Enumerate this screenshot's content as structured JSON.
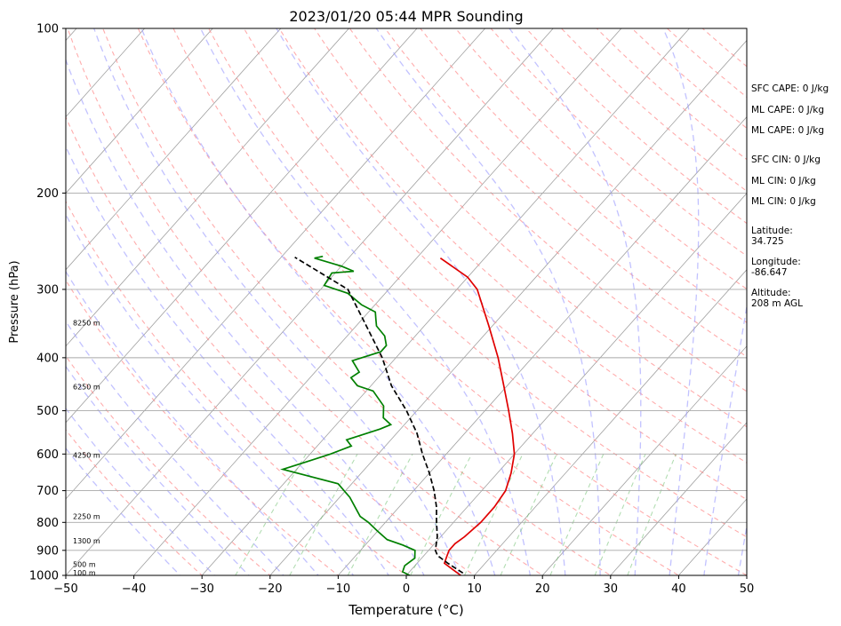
{
  "chart_data": {
    "type": "line",
    "title": "2023/01/20 05:44 MPR Sounding",
    "xlabel": "Temperature (°C)",
    "ylabel": "Pressure (hPa)",
    "xlim": [
      -50,
      50
    ],
    "ylim": [
      1000,
      100
    ],
    "yscale": "log",
    "grid": true,
    "xticks": [
      "−50",
      "−40",
      "−30",
      "−20",
      "−10",
      "0",
      "10",
      "20",
      "30",
      "40",
      "50"
    ],
    "yticks": [
      "100",
      "200",
      "300",
      "400",
      "500",
      "600",
      "700",
      "800",
      "900",
      "1000"
    ],
    "height_labels": [
      {
        "p": 988,
        "text": "100 m"
      },
      {
        "p": 955,
        "text": "500 m"
      },
      {
        "p": 865,
        "text": "1300 m"
      },
      {
        "p": 780,
        "text": "2250 m"
      },
      {
        "p": 603,
        "text": "4250 m"
      },
      {
        "p": 452,
        "text": "6250 m"
      },
      {
        "p": 345,
        "text": "8250 m"
      }
    ],
    "series": [
      {
        "color": "#e00000",
        "points": [
          [
            1000,
            8.0
          ],
          [
            975,
            6.0
          ],
          [
            950,
            4.0
          ],
          [
            925,
            3.5
          ],
          [
            900,
            3.0
          ],
          [
            875,
            3.0
          ],
          [
            850,
            3.5
          ],
          [
            800,
            4.0
          ],
          [
            750,
            4.0
          ],
          [
            700,
            3.5
          ],
          [
            650,
            2.0
          ],
          [
            600,
            0.0
          ],
          [
            550,
            -3.0
          ],
          [
            500,
            -6.5
          ],
          [
            450,
            -10.5
          ],
          [
            400,
            -15.0
          ],
          [
            350,
            -20.5
          ],
          [
            300,
            -27.0
          ],
          [
            285,
            -30.0
          ],
          [
            263,
            -36.5
          ]
        ]
      },
      {
        "color": "#008000",
        "points": [
          [
            1000,
            0.5
          ],
          [
            985,
            -1.0
          ],
          [
            960,
            -1.5
          ],
          [
            930,
            -1.0
          ],
          [
            900,
            -2.0
          ],
          [
            880,
            -4.5
          ],
          [
            860,
            -7.5
          ],
          [
            830,
            -10.0
          ],
          [
            800,
            -12.5
          ],
          [
            780,
            -14.5
          ],
          [
            720,
            -18.5
          ],
          [
            680,
            -22.0
          ],
          [
            640,
            -32.0
          ],
          [
            620,
            -29.5
          ],
          [
            600,
            -27.0
          ],
          [
            580,
            -25.0
          ],
          [
            565,
            -26.5
          ],
          [
            540,
            -23.0
          ],
          [
            530,
            -22.0
          ],
          [
            515,
            -24.0
          ],
          [
            490,
            -25.5
          ],
          [
            460,
            -29.0
          ],
          [
            450,
            -32.0
          ],
          [
            435,
            -34.0
          ],
          [
            425,
            -33.5
          ],
          [
            405,
            -36.0
          ],
          [
            390,
            -33.0
          ],
          [
            380,
            -33.0
          ],
          [
            365,
            -34.5
          ],
          [
            350,
            -37.0
          ],
          [
            340,
            -38.0
          ],
          [
            330,
            -39.0
          ],
          [
            320,
            -42.0
          ],
          [
            305,
            -45.5
          ],
          [
            295,
            -50.0
          ],
          [
            280,
            -50.5
          ],
          [
            278,
            -47.5
          ],
          [
            272,
            -50.0
          ],
          [
            263,
            -55.0
          ],
          [
            261,
            -54.0
          ]
        ]
      },
      {
        "color": "#000000",
        "dashed": true,
        "points": [
          [
            990,
            8.0
          ],
          [
            950,
            4.5
          ],
          [
            920,
            2.0
          ],
          [
            900,
            1.0
          ],
          [
            850,
            -0.5
          ],
          [
            800,
            -2.5
          ],
          [
            750,
            -4.5
          ],
          [
            700,
            -7.0
          ],
          [
            650,
            -10.0
          ],
          [
            600,
            -13.5
          ],
          [
            550,
            -17.0
          ],
          [
            500,
            -21.5
          ],
          [
            450,
            -27.0
          ],
          [
            400,
            -32.0
          ],
          [
            350,
            -38.5
          ],
          [
            300,
            -46.0
          ],
          [
            262,
            -58.0
          ]
        ]
      }
    ]
  },
  "stats": {
    "sfc_cape": "SFC CAPE: 0 J/kg",
    "ml_cape_1": "ML CAPE: 0 J/kg",
    "ml_cape_2": "ML CAPE: 0 J/kg",
    "sfc_cin": "SFC CIN: 0 J/kg",
    "ml_cin_1": "ML CIN: 0 J/kg",
    "ml_cin_2": "ML CIN: 0 J/kg",
    "latitude_label": "Latitude:",
    "latitude_value": "34.725",
    "longitude_label": "Longitude:",
    "longitude_value": "-86.647",
    "altitude_label": "Altitude:",
    "altitude_value": "208 m AGL"
  }
}
